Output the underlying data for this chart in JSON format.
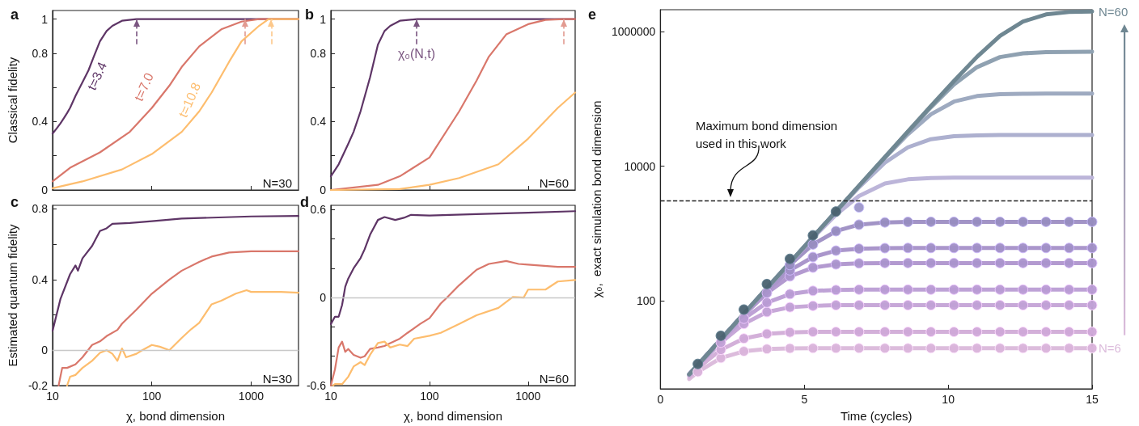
{
  "chart_data": [
    {
      "type": "line",
      "title": "a",
      "ylabel": "Classical fidelity",
      "log": "x",
      "xlim": [
        10,
        3000
      ],
      "xticks": [
        10,
        100,
        1000
      ],
      "ylim": [
        0,
        1.05
      ],
      "yticks": [
        0,
        {
          "value": 0.2,
          "label": null
        },
        0.4,
        {
          "value": 0.6,
          "label": null
        },
        0.8,
        1
      ],
      "tick_labels": "y",
      "marker": "none",
      "grid": false,
      "series": [
        {
          "color": "#5e3566",
          "x": [
            10,
            11,
            12,
            13,
            14,
            15,
            17,
            20,
            23,
            26,
            30,
            35,
            40,
            50,
            70,
            3000
          ],
          "values": [
            0.33,
            0.36,
            0.39,
            0.42,
            0.45,
            0.48,
            0.55,
            0.63,
            0.7,
            0.78,
            0.87,
            0.93,
            0.96,
            0.99,
            1.0,
            1.0
          ]
        },
        {
          "color": "#d9776b",
          "x": [
            10,
            15,
            30,
            60,
            100,
            150,
            200,
            300,
            500,
            800,
            1200,
            3000
          ],
          "values": [
            0.05,
            0.13,
            0.22,
            0.34,
            0.48,
            0.61,
            0.72,
            0.84,
            0.94,
            0.985,
            1.0,
            1.0
          ]
        },
        {
          "color": "#fdbd6e",
          "x": [
            10,
            20,
            50,
            100,
            200,
            300,
            400,
            600,
            800,
            1200,
            1500,
            3000
          ],
          "values": [
            0.01,
            0.05,
            0.12,
            0.21,
            0.34,
            0.46,
            0.57,
            0.75,
            0.87,
            0.96,
            1.0,
            1.0
          ]
        }
      ],
      "ref_lines": [
        {
          "axis": "x",
          "value": 70,
          "color": "#7a5580",
          "line_style": "dashed"
        },
        {
          "axis": "x",
          "value": 870,
          "color": "#e29a90",
          "line_style": "dashed"
        },
        {
          "axis": "x",
          "value": 1600,
          "color": "#fdc88a",
          "line_style": "dashed"
        }
      ],
      "annotations": [
        {
          "text": "t=3.4",
          "x": 26,
          "y": 0.78
        },
        {
          "text": "t=7.0",
          "x": 100,
          "y": 0.48
        },
        {
          "text": "t=10.8",
          "x": 300,
          "y": 0.46
        },
        "N=30"
      ]
    },
    {
      "type": "line",
      "title": "b",
      "log": "x",
      "xlim": [
        10,
        3000
      ],
      "xticks": [
        10,
        100,
        1000
      ],
      "ylim": [
        0,
        1.05
      ],
      "yticks": [
        0,
        {
          "value": 0.2,
          "label": null
        },
        0.4,
        {
          "value": 0.6,
          "label": null
        },
        0.8,
        1
      ],
      "tick_labels": "y",
      "marker": "none",
      "grid": false,
      "series": [
        {
          "color": "#5e3566",
          "x": [
            10,
            12,
            15,
            17,
            20,
            25,
            30,
            35,
            40,
            50,
            75,
            3000
          ],
          "values": [
            0.08,
            0.15,
            0.27,
            0.34,
            0.46,
            0.66,
            0.85,
            0.93,
            0.96,
            0.99,
            1.0,
            1.0
          ]
        },
        {
          "color": "#d9776b",
          "x": [
            10,
            30,
            50,
            100,
            200,
            300,
            400,
            600,
            1000,
            1500,
            2300,
            3000
          ],
          "values": [
            0.0,
            0.03,
            0.08,
            0.19,
            0.46,
            0.64,
            0.78,
            0.91,
            0.97,
            0.995,
            1.0,
            1.0
          ]
        },
        {
          "color": "#fdbd6e",
          "x": [
            10,
            50,
            100,
            200,
            500,
            1000,
            2000,
            3000
          ],
          "values": [
            0.0,
            0.005,
            0.03,
            0.07,
            0.15,
            0.3,
            0.48,
            0.57
          ]
        }
      ],
      "ref_lines": [
        {
          "axis": "x",
          "value": 74,
          "color": "#7a5580",
          "line_style": "dashed",
          "label": "χ₀(N,t)"
        },
        {
          "axis": "x",
          "value": 2300,
          "color": "#e29a90",
          "line_style": "dashed"
        }
      ],
      "annotations": [
        "N=60"
      ]
    },
    {
      "type": "line",
      "title": "c",
      "xlabel": "χ, bond dimension",
      "ylabel": "Estimated quantum fidelity",
      "log": "x",
      "xlim": [
        10,
        3000
      ],
      "xticks": [
        10,
        100,
        1000
      ],
      "ylim": [
        -0.2,
        0.82
      ],
      "yticks": [
        -0.2,
        0,
        {
          "value": 0.2,
          "label": null
        },
        0.4,
        {
          "value": 0.6,
          "label": null
        },
        0.8
      ],
      "marker": "none",
      "grid": false,
      "series": [
        {
          "color": "#5e3566",
          "x": [
            10,
            12,
            15,
            17,
            18,
            20,
            25,
            30,
            35,
            40,
            60,
            100,
            200,
            1000,
            3000
          ],
          "values": [
            0.11,
            0.29,
            0.43,
            0.48,
            0.45,
            0.52,
            0.59,
            0.675,
            0.69,
            0.715,
            0.72,
            0.73,
            0.745,
            0.757,
            0.76
          ]
        },
        {
          "color": "#d9776b",
          "x": [
            11.5,
            12.5,
            14,
            17,
            20,
            25,
            30,
            35,
            45,
            50,
            70,
            100,
            150,
            200,
            300,
            400,
            600,
            1000,
            3000
          ],
          "values": [
            -0.2,
            -0.1,
            -0.1,
            -0.08,
            -0.04,
            0.03,
            0.05,
            0.08,
            0.115,
            0.15,
            0.23,
            0.32,
            0.4,
            0.45,
            0.5,
            0.53,
            0.553,
            0.56,
            0.56
          ]
        },
        {
          "color": "#fdbd6e",
          "x": [
            14,
            15,
            17,
            20,
            25,
            30,
            35,
            40,
            45,
            50,
            55,
            70,
            80,
            100,
            120,
            150,
            200,
            250,
            300,
            400,
            500,
            700,
            900,
            1000,
            2000,
            3000
          ],
          "values": [
            -0.2,
            -0.15,
            -0.14,
            -0.1,
            -0.06,
            -0.015,
            0.0,
            -0.02,
            -0.06,
            0.01,
            -0.04,
            -0.02,
            0.0,
            0.03,
            0.02,
            0.0,
            0.07,
            0.12,
            0.155,
            0.26,
            0.28,
            0.32,
            0.34,
            0.33,
            0.33,
            0.325
          ]
        }
      ],
      "ref_lines": [
        {
          "axis": "y",
          "value": 0,
          "color": "#c8c8c8"
        }
      ],
      "annotations": [
        "N=30"
      ]
    },
    {
      "type": "line",
      "title": "d",
      "xlabel": "χ, bond dimension",
      "log": "x",
      "xlim": [
        10,
        3000
      ],
      "xticks": [
        10,
        100,
        1000
      ],
      "ylim": [
        -0.6,
        0.63
      ],
      "yticks": [
        -0.6,
        {
          "value": -0.4,
          "label": null
        },
        {
          "value": -0.2,
          "label": null
        },
        0,
        {
          "value": 0.2,
          "label": null
        },
        {
          "value": 0.4,
          "label": null
        },
        0.6
      ],
      "marker": "none",
      "grid": false,
      "series": [
        {
          "color": "#5e3566",
          "x": [
            10,
            11,
            12,
            13,
            14,
            15,
            17,
            20,
            22,
            25,
            30,
            35,
            45,
            55,
            65,
            100,
            300,
            1000,
            3000
          ],
          "values": [
            -0.18,
            -0.13,
            -0.13,
            -0.05,
            0.075,
            0.13,
            0.2,
            0.27,
            0.33,
            0.43,
            0.53,
            0.55,
            0.53,
            0.545,
            0.565,
            0.56,
            0.57,
            0.58,
            0.59
          ]
        },
        {
          "color": "#d9776b",
          "x": [
            10,
            11,
            12,
            13,
            14,
            15,
            17,
            20,
            22,
            25,
            30,
            35,
            40,
            50,
            60,
            80,
            100,
            130,
            150,
            200,
            300,
            400,
            600,
            800,
            1000,
            2000,
            3000
          ],
          "values": [
            -0.6,
            -0.49,
            -0.34,
            -0.3,
            -0.37,
            -0.35,
            -0.39,
            -0.41,
            -0.4,
            -0.35,
            -0.34,
            -0.33,
            -0.31,
            -0.28,
            -0.24,
            -0.18,
            -0.14,
            -0.04,
            0.0,
            0.085,
            0.19,
            0.23,
            0.25,
            0.23,
            0.225,
            0.21,
            0.21
          ]
        },
        {
          "color": "#fdbd6e",
          "x": [
            10.5,
            11,
            13,
            15,
            17,
            20,
            22,
            25,
            30,
            35,
            40,
            50,
            60,
            70,
            100,
            130,
            200,
            300,
            500,
            700,
            900,
            1000,
            1500,
            2000,
            3000
          ],
          "values": [
            -0.6,
            -0.59,
            -0.59,
            -0.54,
            -0.47,
            -0.44,
            -0.46,
            -0.39,
            -0.31,
            -0.3,
            -0.34,
            -0.32,
            -0.33,
            -0.28,
            -0.26,
            -0.24,
            -0.18,
            -0.12,
            -0.07,
            0.005,
            0.0,
            0.055,
            0.055,
            0.11,
            0.12
          ]
        }
      ],
      "ref_lines": [
        {
          "axis": "y",
          "value": 0,
          "color": "#c8c8c8"
        }
      ],
      "annotations": [
        "N=60"
      ]
    },
    {
      "type": "line",
      "title": "e",
      "xlabel": "Time (cycles)",
      "ylabel": "χ₀,  exact simulation bond dimension",
      "log": "y",
      "xlim": [
        0,
        15
      ],
      "xticks": [
        0,
        5,
        10,
        15
      ],
      "ylim": [
        5,
        2100000
      ],
      "yticks": [
        100,
        10000,
        1000000
      ],
      "marker": "circle",
      "grid": false,
      "x": [
        1.0,
        1.3,
        2.1,
        2.9,
        3.7,
        4.5,
        5.3,
        6.1,
        6.9,
        7.8,
        8.6,
        9.4,
        10.2,
        11,
        11.8,
        12.6,
        13.4,
        14.2,
        15
      ],
      "series": [
        {
          "type": "line",
          "marker": "none",
          "color": "#dcbcdc",
          "values": [
            7.0,
            8.9,
            14.3,
            18.0,
            19.5,
            19.9,
            20,
            20,
            20,
            20,
            20,
            20,
            20,
            20,
            20,
            20,
            20,
            20,
            20
          ]
        },
        {
          "type": "line",
          "marker": "none",
          "color": "#d3b0d9",
          "values": [
            7.6,
            10.1,
            19.0,
            27.9,
            32.7,
            34.4,
            35,
            35,
            35,
            35,
            35,
            35,
            35,
            35,
            35,
            35,
            35,
            35,
            35
          ]
        },
        {
          "type": "line",
          "marker": "none",
          "color": "#c7a8d8",
          "values": [
            8.0,
            11.0,
            24.3,
            46,
            69,
            81,
            85,
            87,
            87,
            87,
            87,
            87,
            87,
            87,
            87,
            87,
            87,
            87,
            87
          ]
        },
        {
          "type": "line",
          "marker": "none",
          "color": "#bea2d6",
          "values": [
            8.2,
            11.1,
            25.8,
            55,
            95,
            127,
            142,
            146,
            148,
            148,
            148,
            148,
            148,
            148,
            148,
            148,
            148,
            148,
            148
          ]
        },
        {
          "type": "line",
          "marker": "none",
          "color": "#b39ad0",
          "values": [
            8.2,
            11.3,
            26.7,
            62,
            132,
            233,
            314,
            351,
            363,
            367,
            367,
            367,
            367,
            367,
            367,
            367,
            367,
            367,
            367
          ]
        },
        {
          "type": "line",
          "marker": "none",
          "color": "#aa96cb",
          "values": [
            8.2,
            11.3,
            27.0,
            63.5,
            144,
            287,
            450,
            560,
            599,
            610,
            614,
            614,
            614,
            614,
            614,
            614,
            614,
            614,
            614
          ]
        },
        {
          "type": "line",
          "marker": "none",
          "color": "#a294c6",
          "values": [
            8.2,
            11.3,
            27.1,
            64.5,
            152,
            344,
            692,
            1090,
            1360,
            1470,
            1495,
            1500,
            1500,
            1500,
            1500,
            1500,
            1500,
            1500,
            1500
          ]
        },
        {
          "type": "line",
          "marker": "none",
          "color": "#bcb5d9",
          "values": [
            8.2,
            11.3,
            27.1,
            65,
            155,
            369,
            865,
            1910,
            3620,
            5550,
            6400,
            6690,
            6780,
            6800,
            6800,
            6800,
            6800,
            6800,
            6800
          ]
        },
        {
          "type": "line",
          "marker": "none",
          "color": "#adb0cf",
          "values": [
            8.2,
            11.3,
            27.1,
            65,
            156,
            372,
            888,
            2100,
            4880,
            11300,
            19100,
            25200,
            27900,
            28700,
            29000,
            29000,
            29000,
            29000,
            29000
          ]
        },
        {
          "type": "line",
          "marker": "none",
          "color": "#9eaac0",
          "values": [
            8.2,
            11.3,
            27.1,
            65,
            156,
            372,
            891,
            2130,
            5100,
            13300,
            29900,
            59000,
            91000,
            110000,
            117000,
            119000,
            120000,
            120000,
            120000
          ]
        },
        {
          "type": "line",
          "marker": "none",
          "color": "#8fa1b1",
          "values": [
            8.2,
            11.3,
            27.1,
            65,
            156,
            372,
            891,
            2130,
            5120,
            13600,
            32300,
            75200,
            163000,
            295000,
            416000,
            473000,
            492000,
            498000,
            500000
          ]
        },
        {
          "type": "line",
          "marker": "none",
          "color": "#6f8792",
          "values": [
            8.2,
            11.3,
            27.1,
            65,
            156,
            372,
            891,
            2130,
            5120,
            13600,
            32700,
            78000,
            184000,
            419000,
            857000,
            1400000,
            1790000,
            1940000,
            1980000
          ]
        },
        {
          "type": "scatter",
          "color": "#d9b3da",
          "x": [
            1.3,
            2.1,
            2.9,
            3.7,
            4.5,
            5.3,
            6.1,
            6.9,
            7.8,
            8.6,
            9.4,
            10.2,
            11,
            11.8,
            12.6,
            13.4,
            14.2,
            15
          ],
          "values": [
            8.9,
            14.3,
            18.0,
            19.5,
            19.9,
            20,
            20,
            20,
            20,
            20,
            20,
            20,
            20,
            20,
            20,
            20,
            20,
            20
          ]
        },
        {
          "type": "scatter",
          "color": "#cfa8d8",
          "x": [
            2.1,
            2.9,
            3.7,
            4.5,
            5.3,
            6.1,
            6.9,
            7.8,
            8.6,
            9.4,
            10.2,
            11,
            11.8,
            12.6,
            13.4,
            14.2,
            15
          ],
          "values": [
            19.0,
            27.9,
            32.7,
            34.4,
            35,
            35,
            35,
            35,
            35,
            35,
            35,
            35,
            35,
            35,
            35,
            35,
            35
          ]
        },
        {
          "type": "scatter",
          "color": "#c1a0d6",
          "x": [
            2.1,
            2.9,
            3.7,
            4.5,
            5.3,
            6.1,
            6.9,
            7.8,
            8.6,
            9.4,
            10.2,
            11,
            11.8,
            12.6,
            13.4,
            14.2,
            15
          ],
          "values": [
            24.3,
            46,
            69,
            81,
            85,
            87,
            87,
            87,
            87,
            87,
            87,
            87,
            87,
            87,
            87,
            87,
            87
          ]
        },
        {
          "type": "scatter",
          "color": "#b89bd4",
          "x": [
            2.9,
            3.7,
            4.5,
            5.3,
            6.1,
            6.9,
            7.8,
            8.6,
            9.4,
            10.2,
            11,
            11.8,
            12.6,
            13.4,
            14.2,
            15
          ],
          "values": [
            55,
            95,
            127,
            142,
            146,
            148,
            148,
            148,
            148,
            148,
            148,
            148,
            148,
            148,
            148,
            148
          ]
        },
        {
          "type": "scatter",
          "color": "#aa93cc",
          "x": [
            3.7,
            4.5,
            5.3,
            6.1,
            6.9,
            7.8,
            8.6,
            9.4,
            10.2,
            11,
            11.8,
            12.6,
            13.4,
            14.2,
            15
          ],
          "values": [
            132,
            233,
            314,
            351,
            363,
            367,
            367,
            367,
            367,
            367,
            367,
            367,
            367,
            367,
            367
          ]
        },
        {
          "type": "scatter",
          "color": "#a08fc6",
          "x": [
            4.5,
            5.3,
            6.1,
            6.9,
            7.8,
            8.6,
            9.4,
            10.2,
            11,
            11.8,
            12.6,
            13.4,
            14.2,
            15
          ],
          "values": [
            287,
            450,
            560,
            599,
            610,
            614,
            614,
            614,
            614,
            614,
            614,
            614,
            614,
            614
          ]
        },
        {
          "type": "scatter",
          "color": "#978cc0",
          "x": [
            4.5,
            5.3,
            6.1,
            6.9,
            7.8,
            8.6,
            9.4,
            10.2,
            11,
            11.8,
            12.6,
            13.4,
            14.2,
            15
          ],
          "values": [
            344,
            692,
            1090,
            1360,
            1470,
            1495,
            1500,
            1500,
            1500,
            1500,
            1500,
            1500,
            1500,
            1500
          ]
        },
        {
          "type": "scatter",
          "color": "#9c96c8",
          "x": [
            6.9
          ],
          "values": [
            2450
          ]
        },
        {
          "type": "scatter",
          "color": "#4a6270",
          "x": [
            1.3,
            2.1,
            2.9,
            3.7,
            4.5,
            5.3,
            6.1
          ],
          "values": [
            11.7,
            30.6,
            74.9,
            179,
            423,
            945,
            2130
          ]
        }
      ],
      "ref_lines": [
        {
          "axis": "y",
          "value": 3100,
          "color": "#222222",
          "line_style": "dashed",
          "label": "Maximum bond dimension used in this work"
        }
      ],
      "annotations": [
        {
          "text": "N=60",
          "x": 15,
          "y": 1980000
        },
        {
          "text": "N=6",
          "x": 15,
          "y": 20
        }
      ]
    }
  ]
}
